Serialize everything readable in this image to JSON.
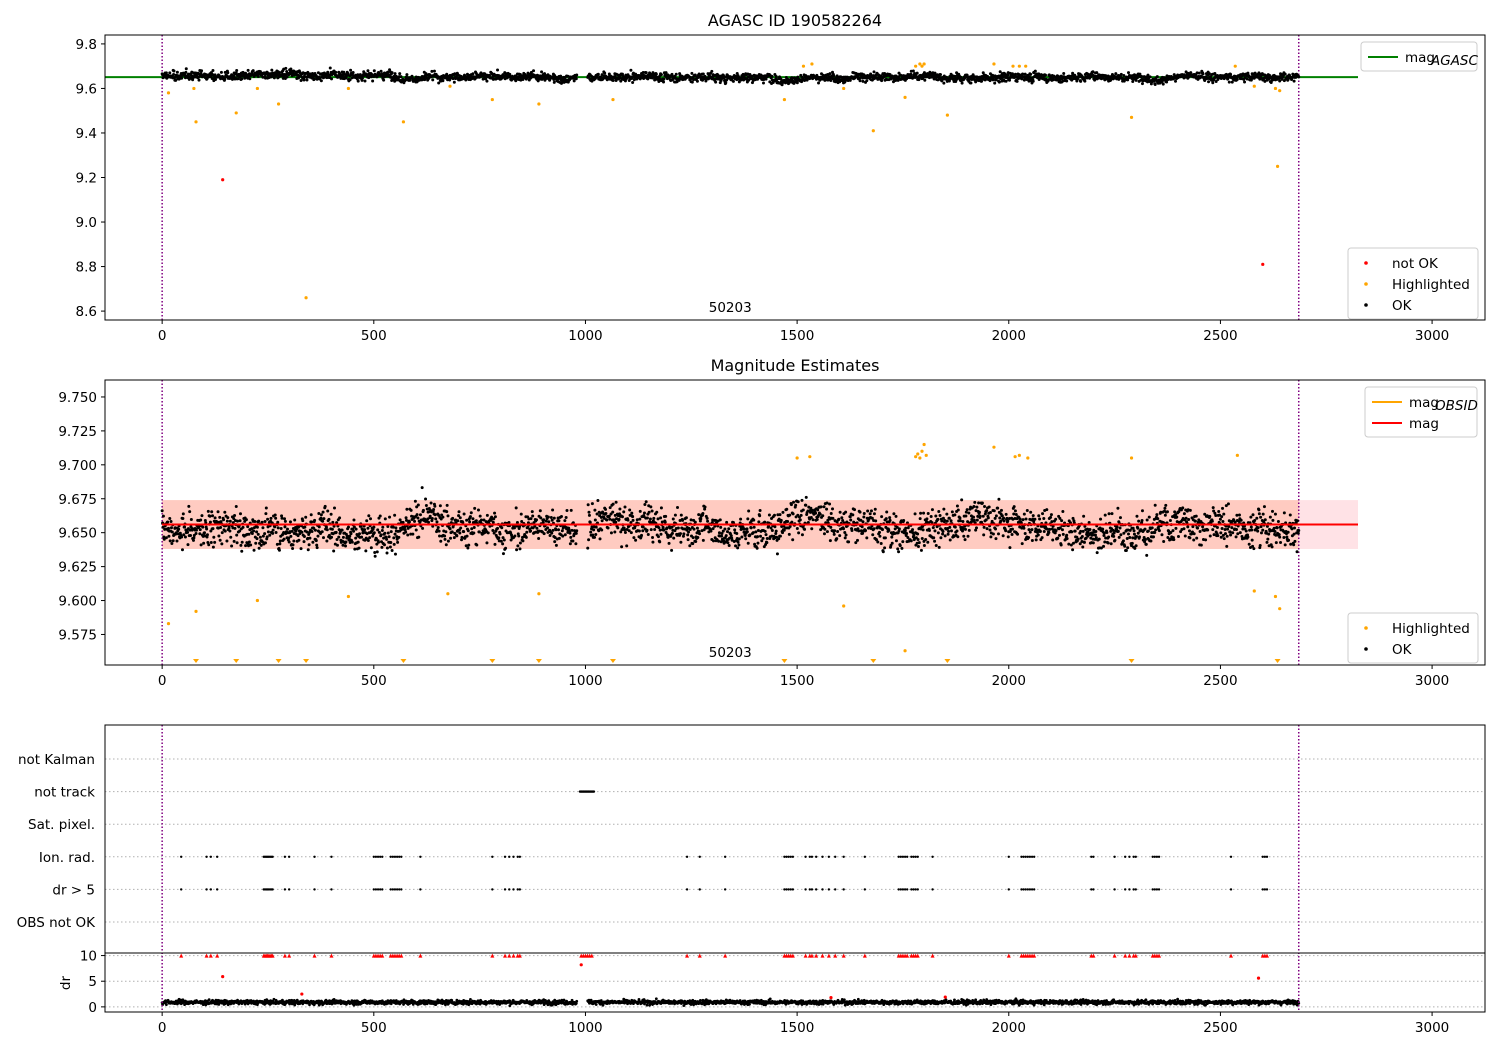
{
  "figure": {
    "background": "#ffffff"
  },
  "colors": {
    "ok": "#000000",
    "highlighted": "#ffa500",
    "not_ok": "#ff0000",
    "mag_agasc_line": "#008000",
    "mag_line": "#ff0000",
    "mag_obsid_line": "#ffa500",
    "band_red": "#ffb6c1",
    "band_orange": "#ffa07a",
    "obsid_boundary": "#800080",
    "grid": "#b0b0b0"
  },
  "chart_data": [
    {
      "type": "scatter",
      "title": "AGASC ID 190582264",
      "xlim": [
        -135,
        3125
      ],
      "ylim": [
        8.56,
        9.84
      ],
      "xticks": [
        0,
        500,
        1000,
        1500,
        2000,
        2500,
        3000
      ],
      "xtick_labels": [
        "0",
        "500",
        "1000",
        "1500",
        "2000",
        "2500",
        "3000"
      ],
      "yticks": [
        8.6,
        8.8,
        9.0,
        9.2,
        9.4,
        9.6,
        9.8
      ],
      "ytick_labels": [
        "8.6",
        "8.8",
        "9.0",
        "9.2",
        "9.4",
        "9.6",
        "9.8"
      ],
      "obsid_boundaries": [
        0,
        2685
      ],
      "obsid_label": {
        "text": "50203",
        "x": 1342
      },
      "mag_agasc": 9.651,
      "mag_agasc_x_range": [
        -135,
        2825
      ],
      "legend_top": {
        "position": "top-right",
        "entries": [
          {
            "label": "mag",
            "sub": "AGASC",
            "color": "#008000",
            "kind": "line"
          }
        ]
      },
      "legend_bottom": {
        "position": "lower-right",
        "entries": [
          {
            "label": "not OK",
            "color": "#ff0000",
            "kind": "marker"
          },
          {
            "label": "Highlighted",
            "color": "#ffa500",
            "kind": "marker"
          },
          {
            "label": "OK",
            "color": "#000000",
            "kind": "marker"
          }
        ]
      },
      "ok_points": {
        "n": 2685,
        "x_range": [
          0,
          2685
        ],
        "center": 9.655,
        "spread": 0.018,
        "gap": [
          980,
          1005
        ]
      },
      "highlighted_points": [
        [
          15,
          9.58
        ],
        [
          75,
          9.6
        ],
        [
          80,
          9.45
        ],
        [
          175,
          9.49
        ],
        [
          225,
          9.6
        ],
        [
          275,
          9.53
        ],
        [
          340,
          8.66
        ],
        [
          440,
          9.6
        ],
        [
          570,
          9.45
        ],
        [
          680,
          9.61
        ],
        [
          780,
          9.55
        ],
        [
          890,
          9.53
        ],
        [
          1065,
          9.55
        ],
        [
          1470,
          9.55
        ],
        [
          1515,
          9.7
        ],
        [
          1535,
          9.71
        ],
        [
          1610,
          9.6
        ],
        [
          1680,
          9.41
        ],
        [
          1755,
          9.56
        ],
        [
          1780,
          9.7
        ],
        [
          1790,
          9.71
        ],
        [
          1795,
          9.7
        ],
        [
          1800,
          9.71
        ],
        [
          1855,
          9.48
        ],
        [
          1965,
          9.71
        ],
        [
          2010,
          9.7
        ],
        [
          2025,
          9.7
        ],
        [
          2040,
          9.7
        ],
        [
          2290,
          9.47
        ],
        [
          2535,
          9.7
        ],
        [
          2580,
          9.61
        ],
        [
          2630,
          9.6
        ],
        [
          2635,
          9.25
        ],
        [
          2640,
          9.59
        ]
      ],
      "not_ok_points": [
        [
          143,
          9.19
        ],
        [
          2600,
          8.81
        ]
      ]
    },
    {
      "type": "scatter",
      "title": "Magnitude Estimates",
      "xlim": [
        -135,
        3125
      ],
      "ylim": [
        9.5525,
        9.7625
      ],
      "xticks": [
        0,
        500,
        1000,
        1500,
        2000,
        2500,
        3000
      ],
      "xtick_labels": [
        "0",
        "500",
        "1000",
        "1500",
        "2000",
        "2500",
        "3000"
      ],
      "yticks": [
        9.575,
        9.6,
        9.625,
        9.65,
        9.675,
        9.7,
        9.725,
        9.75
      ],
      "ytick_labels": [
        "9.575",
        "9.600",
        "9.625",
        "9.650",
        "9.675",
        "9.700",
        "9.725",
        "9.750"
      ],
      "obsid_boundaries": [
        0,
        2685
      ],
      "obsid_label": {
        "text": "50203",
        "x": 1342
      },
      "mag": 9.656,
      "mag_band": [
        9.638,
        9.674
      ],
      "mag_obsid": 9.656,
      "mag_obsid_band": [
        9.638,
        9.674
      ],
      "legend_top": {
        "position": "top-right",
        "entries": [
          {
            "label": "mag",
            "sub": "OBSID",
            "color": "#ffa500",
            "kind": "line"
          },
          {
            "label": "mag",
            "sub": "",
            "color": "#ff0000",
            "kind": "line"
          }
        ]
      },
      "legend_bottom": {
        "position": "lower-right",
        "entries": [
          {
            "label": "Highlighted",
            "color": "#ffa500",
            "kind": "marker"
          },
          {
            "label": "OK",
            "color": "#000000",
            "kind": "marker"
          }
        ]
      },
      "ok_points": {
        "n": 2685,
        "x_range": [
          0,
          2685
        ],
        "center": 9.655,
        "spread": 0.012,
        "gap": [
          980,
          1005
        ]
      },
      "highlighted_points": [
        [
          15,
          9.583
        ],
        [
          80,
          9.592
        ],
        [
          225,
          9.6
        ],
        [
          440,
          9.603
        ],
        [
          675,
          9.605
        ],
        [
          890,
          9.605
        ],
        [
          1500,
          9.705
        ],
        [
          1530,
          9.706
        ],
        [
          1610,
          9.596
        ],
        [
          1755,
          9.563
        ],
        [
          1780,
          9.706
        ],
        [
          1785,
          9.708
        ],
        [
          1790,
          9.705
        ],
        [
          1795,
          9.71
        ],
        [
          1800,
          9.715
        ],
        [
          1805,
          9.707
        ],
        [
          1965,
          9.713
        ],
        [
          2015,
          9.706
        ],
        [
          2025,
          9.707
        ],
        [
          2045,
          9.705
        ],
        [
          2290,
          9.705
        ],
        [
          2540,
          9.707
        ],
        [
          2580,
          9.607
        ],
        [
          2630,
          9.603
        ],
        [
          2640,
          9.594
        ]
      ],
      "below_range_markers": [
        80,
        175,
        275,
        340,
        570,
        780,
        890,
        1065,
        1470,
        1680,
        1855,
        2290,
        2635
      ]
    },
    {
      "type": "scatter",
      "title": "",
      "xlim": [
        -135,
        3125
      ],
      "xticks": [
        0,
        500,
        1000,
        1500,
        2000,
        2500,
        3000
      ],
      "xtick_labels": [
        "0",
        "500",
        "1000",
        "1500",
        "2000",
        "2500",
        "3000"
      ],
      "obsid_boundaries": [
        0,
        2685
      ],
      "flag_rows": [
        "not Kalman",
        "not track",
        "Sat. pixel.",
        "Ion. rad.",
        "dr > 5",
        "OBS not OK"
      ],
      "not_track_ranges": [
        [
          987,
          1020
        ]
      ],
      "ion_rad_x": [
        45,
        105,
        115,
        130,
        240,
        243,
        246,
        249,
        252,
        255,
        258,
        261,
        290,
        300,
        360,
        400,
        500,
        505,
        510,
        515,
        520,
        540,
        545,
        550,
        555,
        560,
        565,
        610,
        780,
        810,
        820,
        830,
        840,
        845,
        1240,
        1270,
        1330,
        1470,
        1475,
        1480,
        1485,
        1490,
        1520,
        1530,
        1535,
        1545,
        1560,
        1575,
        1590,
        1610,
        1660,
        1740,
        1745,
        1750,
        1755,
        1760,
        1770,
        1775,
        1780,
        1785,
        1820,
        2000,
        2030,
        2035,
        2040,
        2045,
        2050,
        2055,
        2060,
        2195,
        2200,
        2250,
        2275,
        2285,
        2295,
        2300,
        2340,
        2345,
        2350,
        2355,
        2525,
        2600,
        2605,
        2610
      ],
      "dr_ylim": [
        -1,
        10.5
      ],
      "dr_yticks": [
        0,
        5,
        10
      ],
      "dr_ytick_labels": [
        "0",
        "5",
        "10"
      ],
      "dr_label": "dr",
      "dr_clip": 10,
      "dr_baseline": {
        "n": 2685,
        "center": 0.9,
        "spread": 0.55
      },
      "dr_outliers": [
        [
          143,
          5.9
        ],
        [
          330,
          2.5
        ],
        [
          990,
          8.2
        ],
        [
          1580,
          1.8
        ],
        [
          1850,
          1.9
        ],
        [
          2590,
          5.6
        ]
      ]
    }
  ]
}
